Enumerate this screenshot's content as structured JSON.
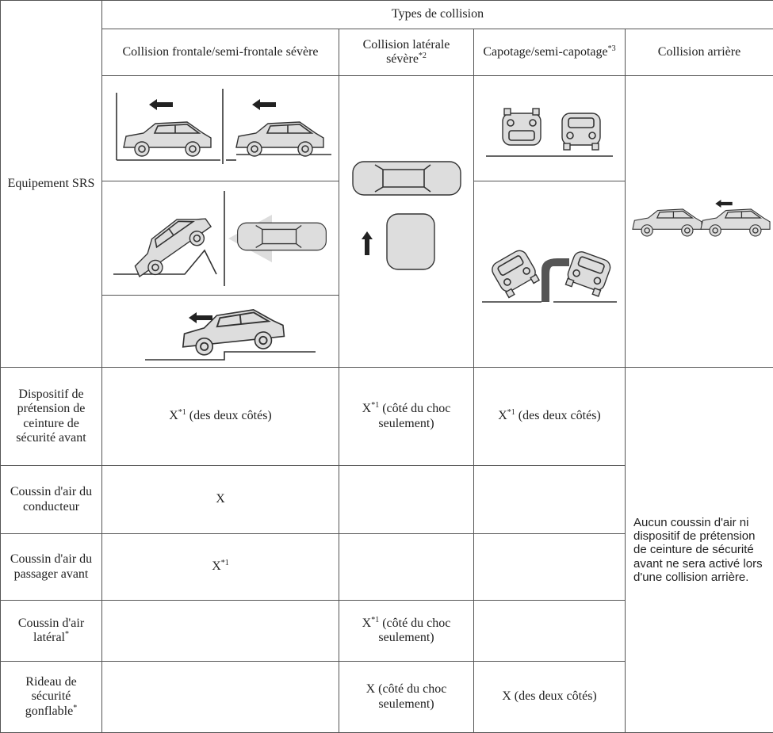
{
  "table": {
    "group_header": "Types de collision",
    "corner_label": "Equipement SRS",
    "columns": [
      {
        "text": "Collision frontale/semi-frontale sévère"
      },
      {
        "text": "Collision latérale sévère",
        "sup": "*2"
      },
      {
        "text": "Capotage/semi-capotage",
        "sup": "*3"
      },
      {
        "text": "Collision arrière"
      }
    ],
    "rear_note": "Aucun coussin d'air ni dispositif de prétension de ceinture de sécurité avant ne sera activé lors d'une collision arrière.",
    "rows": [
      {
        "label": "Dispositif de prétension de ceinture de sécurité avant",
        "cells": [
          {
            "text": "X",
            "sup": "*1",
            "after": " (des deux côtés)"
          },
          {
            "text": "X",
            "sup": "*1",
            "after": " (côté du choc seulement)"
          },
          {
            "text": "X",
            "sup": "*1",
            "after": " (des deux côtés)"
          }
        ]
      },
      {
        "label": "Coussin d'air du conducteur",
        "cells": [
          {
            "text": "X"
          },
          null,
          null
        ]
      },
      {
        "label": "Coussin d'air du passager avant",
        "cells": [
          {
            "text": "X",
            "sup": "*1"
          },
          null,
          null
        ]
      },
      {
        "label": "Coussin d'air latéral",
        "label_sup": "*",
        "cells": [
          null,
          {
            "text": "X",
            "sup": "*1",
            "after": " (côté du choc seulement)"
          },
          null
        ]
      },
      {
        "label": "Rideau de sécurité gonflable",
        "label_sup": "*",
        "cells": [
          null,
          {
            "text": "X (côté du choc seulement)"
          },
          {
            "text": "X (des deux côtés)"
          }
        ]
      }
    ]
  }
}
